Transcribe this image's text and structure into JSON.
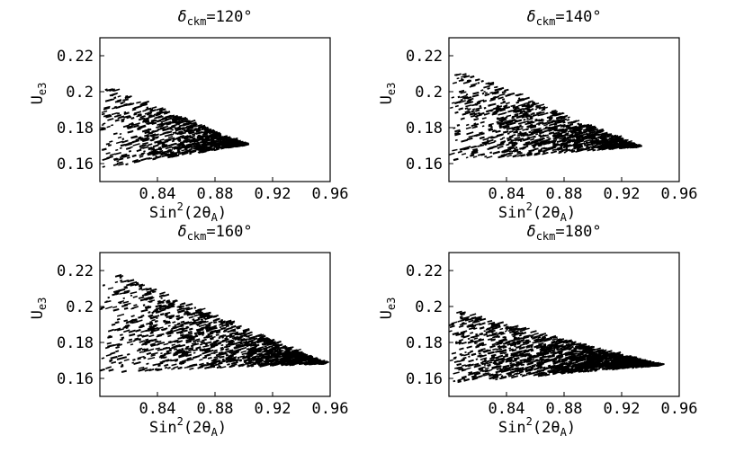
{
  "figure": {
    "panels": [
      {
        "title_prefix": "δ",
        "title_sub": "ckm",
        "title_suffix": "=120°"
      },
      {
        "title_prefix": "δ",
        "title_sub": "ckm",
        "title_suffix": "=140°"
      },
      {
        "title_prefix": "δ",
        "title_sub": "ckm",
        "title_suffix": "=160°"
      },
      {
        "title_prefix": "δ",
        "title_sub": "ckm",
        "title_suffix": "=180°"
      }
    ],
    "ylabel": {
      "main": "U",
      "sub": "e3"
    },
    "xlabel": {
      "pre": "Sin",
      "sup": "2",
      "mid": "(2θ",
      "sub": "A",
      "post": ")"
    },
    "yticks": [
      "0.16",
      "0.18",
      "0.2",
      "0.22"
    ],
    "xticks": [
      "0.84",
      "0.88",
      "0.92",
      "0.96"
    ]
  },
  "chart_data": [
    {
      "type": "scatter",
      "title": "δckm=120°",
      "xlabel": "Sin²(2θA)",
      "ylabel": "Ue3",
      "xlim": [
        0.8,
        0.96
      ],
      "ylim": [
        0.15,
        0.23
      ],
      "xticks": [
        0.84,
        0.88,
        0.92,
        0.96
      ],
      "yticks": [
        0.16,
        0.18,
        0.2,
        0.22
      ],
      "grid": false,
      "region": {
        "x_min": 0.8,
        "x_max": 0.9,
        "y_min_at_xmin": 0.157,
        "y_max_at_xmin": 0.204,
        "tip_y": 0.17
      }
    },
    {
      "type": "scatter",
      "title": "δckm=140°",
      "xlabel": "Sin²(2θA)",
      "ylabel": "Ue3",
      "xlim": [
        0.8,
        0.96
      ],
      "ylim": [
        0.15,
        0.23
      ],
      "xticks": [
        0.84,
        0.88,
        0.92,
        0.96
      ],
      "yticks": [
        0.16,
        0.18,
        0.2,
        0.22
      ],
      "grid": false,
      "region": {
        "x_min": 0.8,
        "x_max": 0.93,
        "y_min_at_xmin": 0.161,
        "y_max_at_xmin": 0.214,
        "tip_y": 0.169
      }
    },
    {
      "type": "scatter",
      "title": "δckm=160°",
      "xlabel": "Sin²(2θA)",
      "ylabel": "Ue3",
      "xlim": [
        0.8,
        0.96
      ],
      "ylim": [
        0.15,
        0.23
      ],
      "xticks": [
        0.84,
        0.88,
        0.92,
        0.96
      ],
      "yticks": [
        0.16,
        0.18,
        0.2,
        0.22
      ],
      "grid": false,
      "region": {
        "x_min": 0.8,
        "x_max": 0.955,
        "y_min_at_xmin": 0.163,
        "y_max_at_xmin": 0.222,
        "tip_y": 0.168
      }
    },
    {
      "type": "scatter",
      "title": "δckm=180°",
      "xlabel": "Sin²(2θA)",
      "ylabel": "Ue3",
      "xlim": [
        0.8,
        0.96
      ],
      "ylim": [
        0.15,
        0.23
      ],
      "xticks": [
        0.84,
        0.88,
        0.92,
        0.96
      ],
      "yticks": [
        0.16,
        0.18,
        0.2,
        0.22
      ],
      "grid": false,
      "region": {
        "x_min": 0.8,
        "x_max": 0.945,
        "y_min_at_xmin": 0.157,
        "y_max_at_xmin": 0.198,
        "tip_y": 0.167
      }
    }
  ]
}
